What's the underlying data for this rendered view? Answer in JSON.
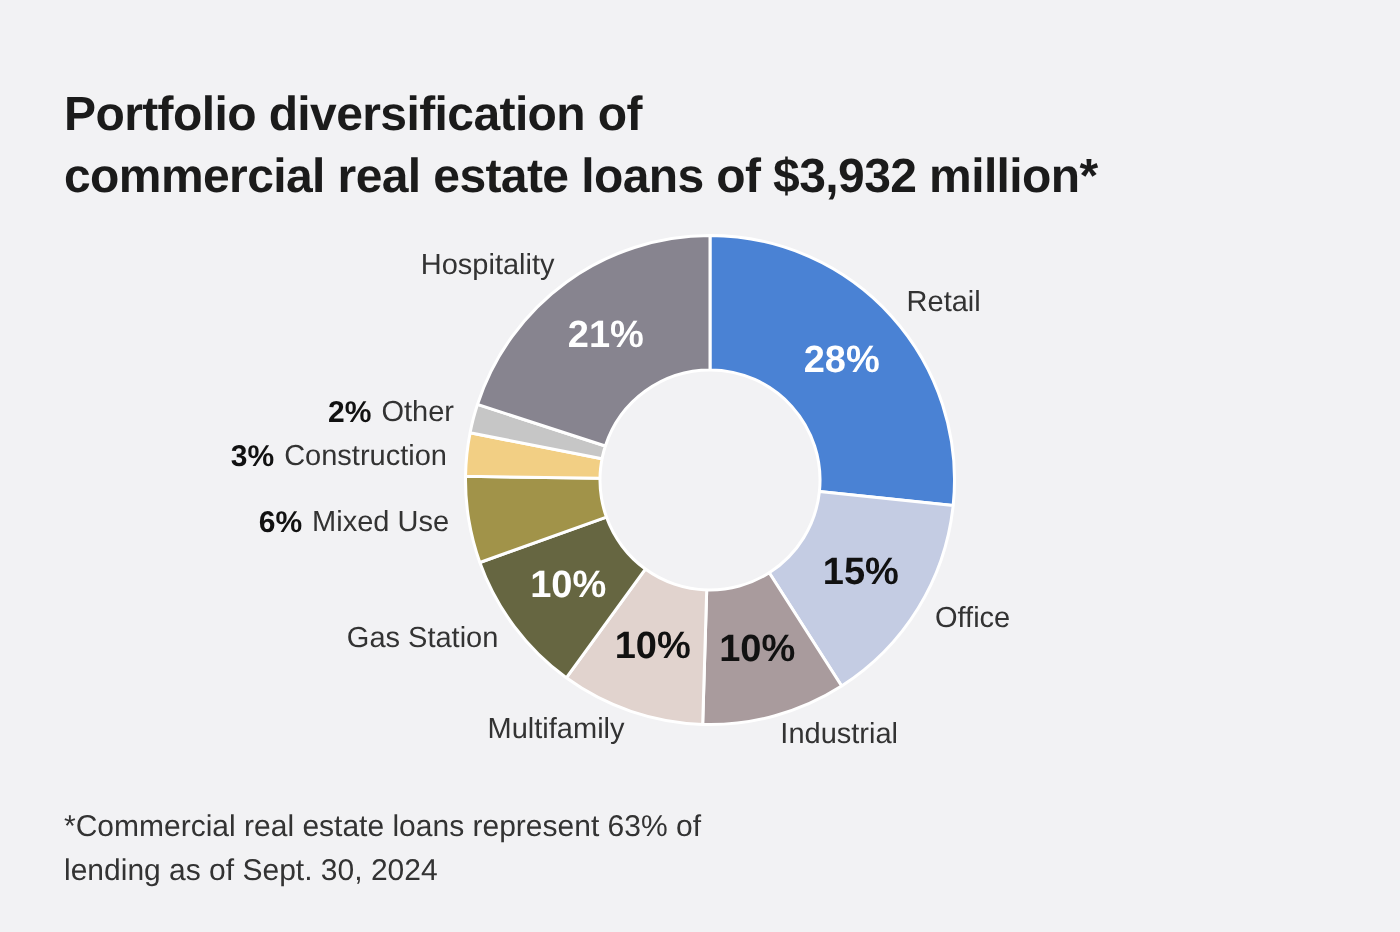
{
  "chart_data": {
    "type": "donut",
    "title": "Portfolio diversification of\ncommercial real estate loans of $3,932 million*",
    "categories": [
      "Retail",
      "Office",
      "Industrial",
      "Multifamily",
      "Gas Station",
      "Mixed Use",
      "Construction",
      "Other",
      "Hospitality"
    ],
    "values": [
      28,
      15,
      10,
      10,
      10,
      6,
      3,
      2,
      21
    ],
    "value_labels": [
      "28%",
      "15%",
      "10%",
      "10%",
      "10%",
      "6%",
      "3%",
      "2%",
      "21%"
    ],
    "colors": [
      "#4a82d4",
      "#c4cce3",
      "#a99b9d",
      "#e1d3ce",
      "#666641",
      "#a19349",
      "#f2cf84",
      "#c6c6c6",
      "#87848f"
    ],
    "annotations": [
      "*Commercial real estate loans represent 63% of lending as of Sept. 30, 2024"
    ]
  }
}
